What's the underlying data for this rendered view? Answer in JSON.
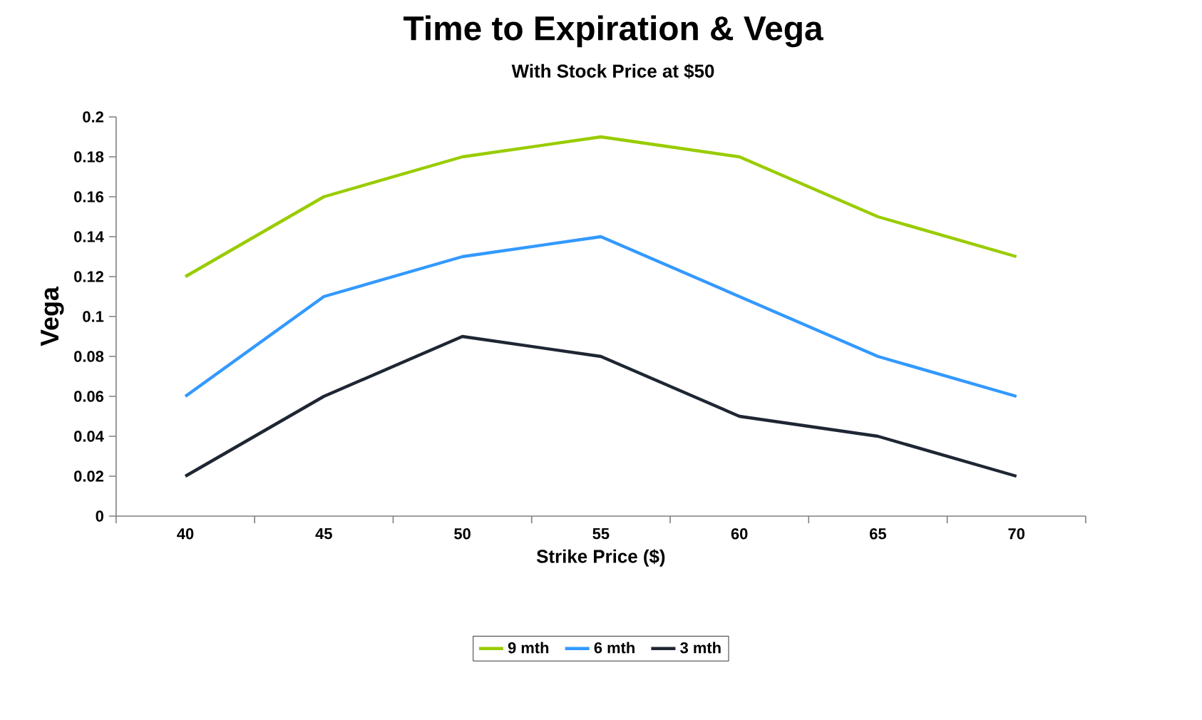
{
  "chart_data": {
    "type": "line",
    "title": "Time to Expiration & Vega",
    "subtitle": "With Stock Price at $50",
    "xlabel": "Strike Price ($)",
    "ylabel": "Vega",
    "categories": [
      "40",
      "45",
      "50",
      "55",
      "60",
      "65",
      "70"
    ],
    "series": [
      {
        "name": "9 mth",
        "color": "#99cc00",
        "values": [
          0.12,
          0.16,
          0.18,
          0.19,
          0.18,
          0.15,
          0.13
        ]
      },
      {
        "name": "6 mth",
        "color": "#3399ff",
        "values": [
          0.06,
          0.11,
          0.13,
          0.14,
          0.11,
          0.08,
          0.06
        ]
      },
      {
        "name": "3 mth",
        "color": "#1f2633",
        "values": [
          0.02,
          0.06,
          0.09,
          0.08,
          0.05,
          0.04,
          0.02
        ]
      }
    ],
    "ylim": [
      0,
      0.2
    ],
    "yticks": [
      0,
      0.02,
      0.04,
      0.06,
      0.08,
      0.1,
      0.12,
      0.14,
      0.16,
      0.18,
      0.2
    ],
    "grid": false,
    "legend": "bottom",
    "line_style": "solid"
  }
}
